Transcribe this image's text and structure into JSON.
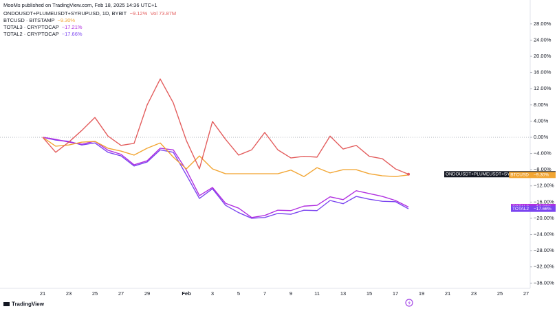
{
  "header": "MooMs published on TradingView.com, Feb 18, 2025 14:36 UTC+1",
  "footer": "TradingView",
  "chart_data": {
    "type": "line",
    "legend": "top-left",
    "grid": false,
    "categories": [
      "21",
      null,
      "23",
      null,
      "25",
      null,
      "27",
      null,
      "29",
      null,
      null,
      "Feb",
      null,
      "3",
      null,
      "5",
      null,
      "7",
      null,
      "9",
      null,
      "11",
      null,
      "13",
      null,
      "15",
      null,
      "17",
      null,
      "19",
      null,
      "21",
      null,
      "23",
      null,
      "25",
      null,
      "27"
    ],
    "ylim": [
      -37.3,
      33.9
    ],
    "yticks": [
      {
        "value": 28,
        "label": "28.00%"
      },
      {
        "value": 24,
        "label": "24.00%"
      },
      {
        "value": 20,
        "label": "20.00%"
      },
      {
        "value": 16,
        "label": "16.00%"
      },
      {
        "value": 12,
        "label": "12.00%"
      },
      {
        "value": 8,
        "label": "8.00%"
      },
      {
        "value": 4,
        "label": "4.00%"
      },
      {
        "value": 0,
        "label": "0.00%"
      },
      {
        "value": -4,
        "label": "−4.00%"
      },
      {
        "value": -8,
        "label": "−8.00%"
      },
      {
        "value": -12,
        "label": "−12.00%"
      },
      {
        "value": -16,
        "label": "−16.00%"
      },
      {
        "value": -20,
        "label": "−20.00%"
      },
      {
        "value": -24,
        "label": "−24.00%"
      },
      {
        "value": -28,
        "label": "−28.00%"
      },
      {
        "value": -32,
        "label": "−32.00%"
      },
      {
        "value": -36,
        "label": "−36.00%"
      }
    ],
    "series": [
      {
        "name": "ONDOUSDT+PLUMEUSDT+SYRUPUSD",
        "legend_label": "ONDOUSDT+PLUMEUSDT+SYRUPUSD, 1D, BYBIT",
        "color": "#e35d5d",
        "tag_color": "#131722",
        "last_label": "−9.12%",
        "volume": "Vol 73.87M",
        "values": [
          0,
          -3.7,
          -1.2,
          1.7,
          4.9,
          0.3,
          -2.0,
          -1.5,
          8.0,
          14.4,
          8.5,
          -0.8,
          -7.8,
          3.9,
          -0.5,
          -4.4,
          -3.1,
          1.2,
          -3.1,
          -5.1,
          -4.7,
          -4.9,
          0.3,
          -2.9,
          -2.0,
          -4.7,
          -5.3,
          -7.8,
          -9.12,
          null,
          null,
          null,
          null,
          null,
          null,
          null,
          null,
          null
        ]
      },
      {
        "name": "BTCUSD",
        "legend_label": "BTCUSD · BITSTAMP",
        "color": "#f2a532",
        "tag_color": "#f2a532",
        "last_label": "−9.30%",
        "values": [
          0,
          -2.2,
          -1.9,
          -1.2,
          -1.0,
          -2.7,
          -3.4,
          -4.4,
          -2.7,
          -1.4,
          -4.9,
          -7.8,
          -4.6,
          -7.8,
          -9.0,
          -9.0,
          -9.0,
          -9.0,
          -9.0,
          -8.1,
          -9.7,
          -7.5,
          -8.8,
          -8.0,
          -8.0,
          -9.0,
          -9.5,
          -9.7,
          -9.3,
          null,
          null,
          null,
          null,
          null,
          null,
          null,
          null,
          null
        ]
      },
      {
        "name": "TOTAL3",
        "legend_label": "TOTAL3 · CRYPTOCAP",
        "color": "#b02ee0",
        "tag_color": "#b02ee0",
        "last_label": "−17.21%",
        "values": [
          0,
          -0.5,
          -1.2,
          -1.7,
          -1.0,
          -3.2,
          -4.2,
          -6.8,
          -5.8,
          -2.7,
          -3.1,
          -8.1,
          -14.4,
          -12.4,
          -16.3,
          -17.5,
          -19.8,
          -19.3,
          -18.0,
          -18.1,
          -17.0,
          -16.8,
          -14.7,
          -15.4,
          -13.2,
          -13.9,
          -14.6,
          -15.6,
          -17.21,
          null,
          null,
          null,
          null,
          null,
          null,
          null,
          null,
          null
        ]
      },
      {
        "name": "TOTAL2",
        "legend_label": "TOTAL2 · CRYPTOCAP",
        "color": "#7b45f0",
        "tag_color": "#7b45f0",
        "last_label": "−17.66%",
        "values": [
          0,
          -0.7,
          -1.0,
          -1.9,
          -1.4,
          -3.7,
          -4.6,
          -7.1,
          -6.1,
          -3.1,
          -3.7,
          -9.3,
          -15.1,
          -12.7,
          -16.8,
          -18.6,
          -20.0,
          -19.8,
          -18.8,
          -19.0,
          -18.0,
          -18.1,
          -15.6,
          -16.4,
          -14.6,
          -15.3,
          -15.8,
          -15.9,
          -17.66,
          null,
          null,
          null,
          null,
          null,
          null,
          null,
          null,
          null
        ]
      }
    ]
  }
}
